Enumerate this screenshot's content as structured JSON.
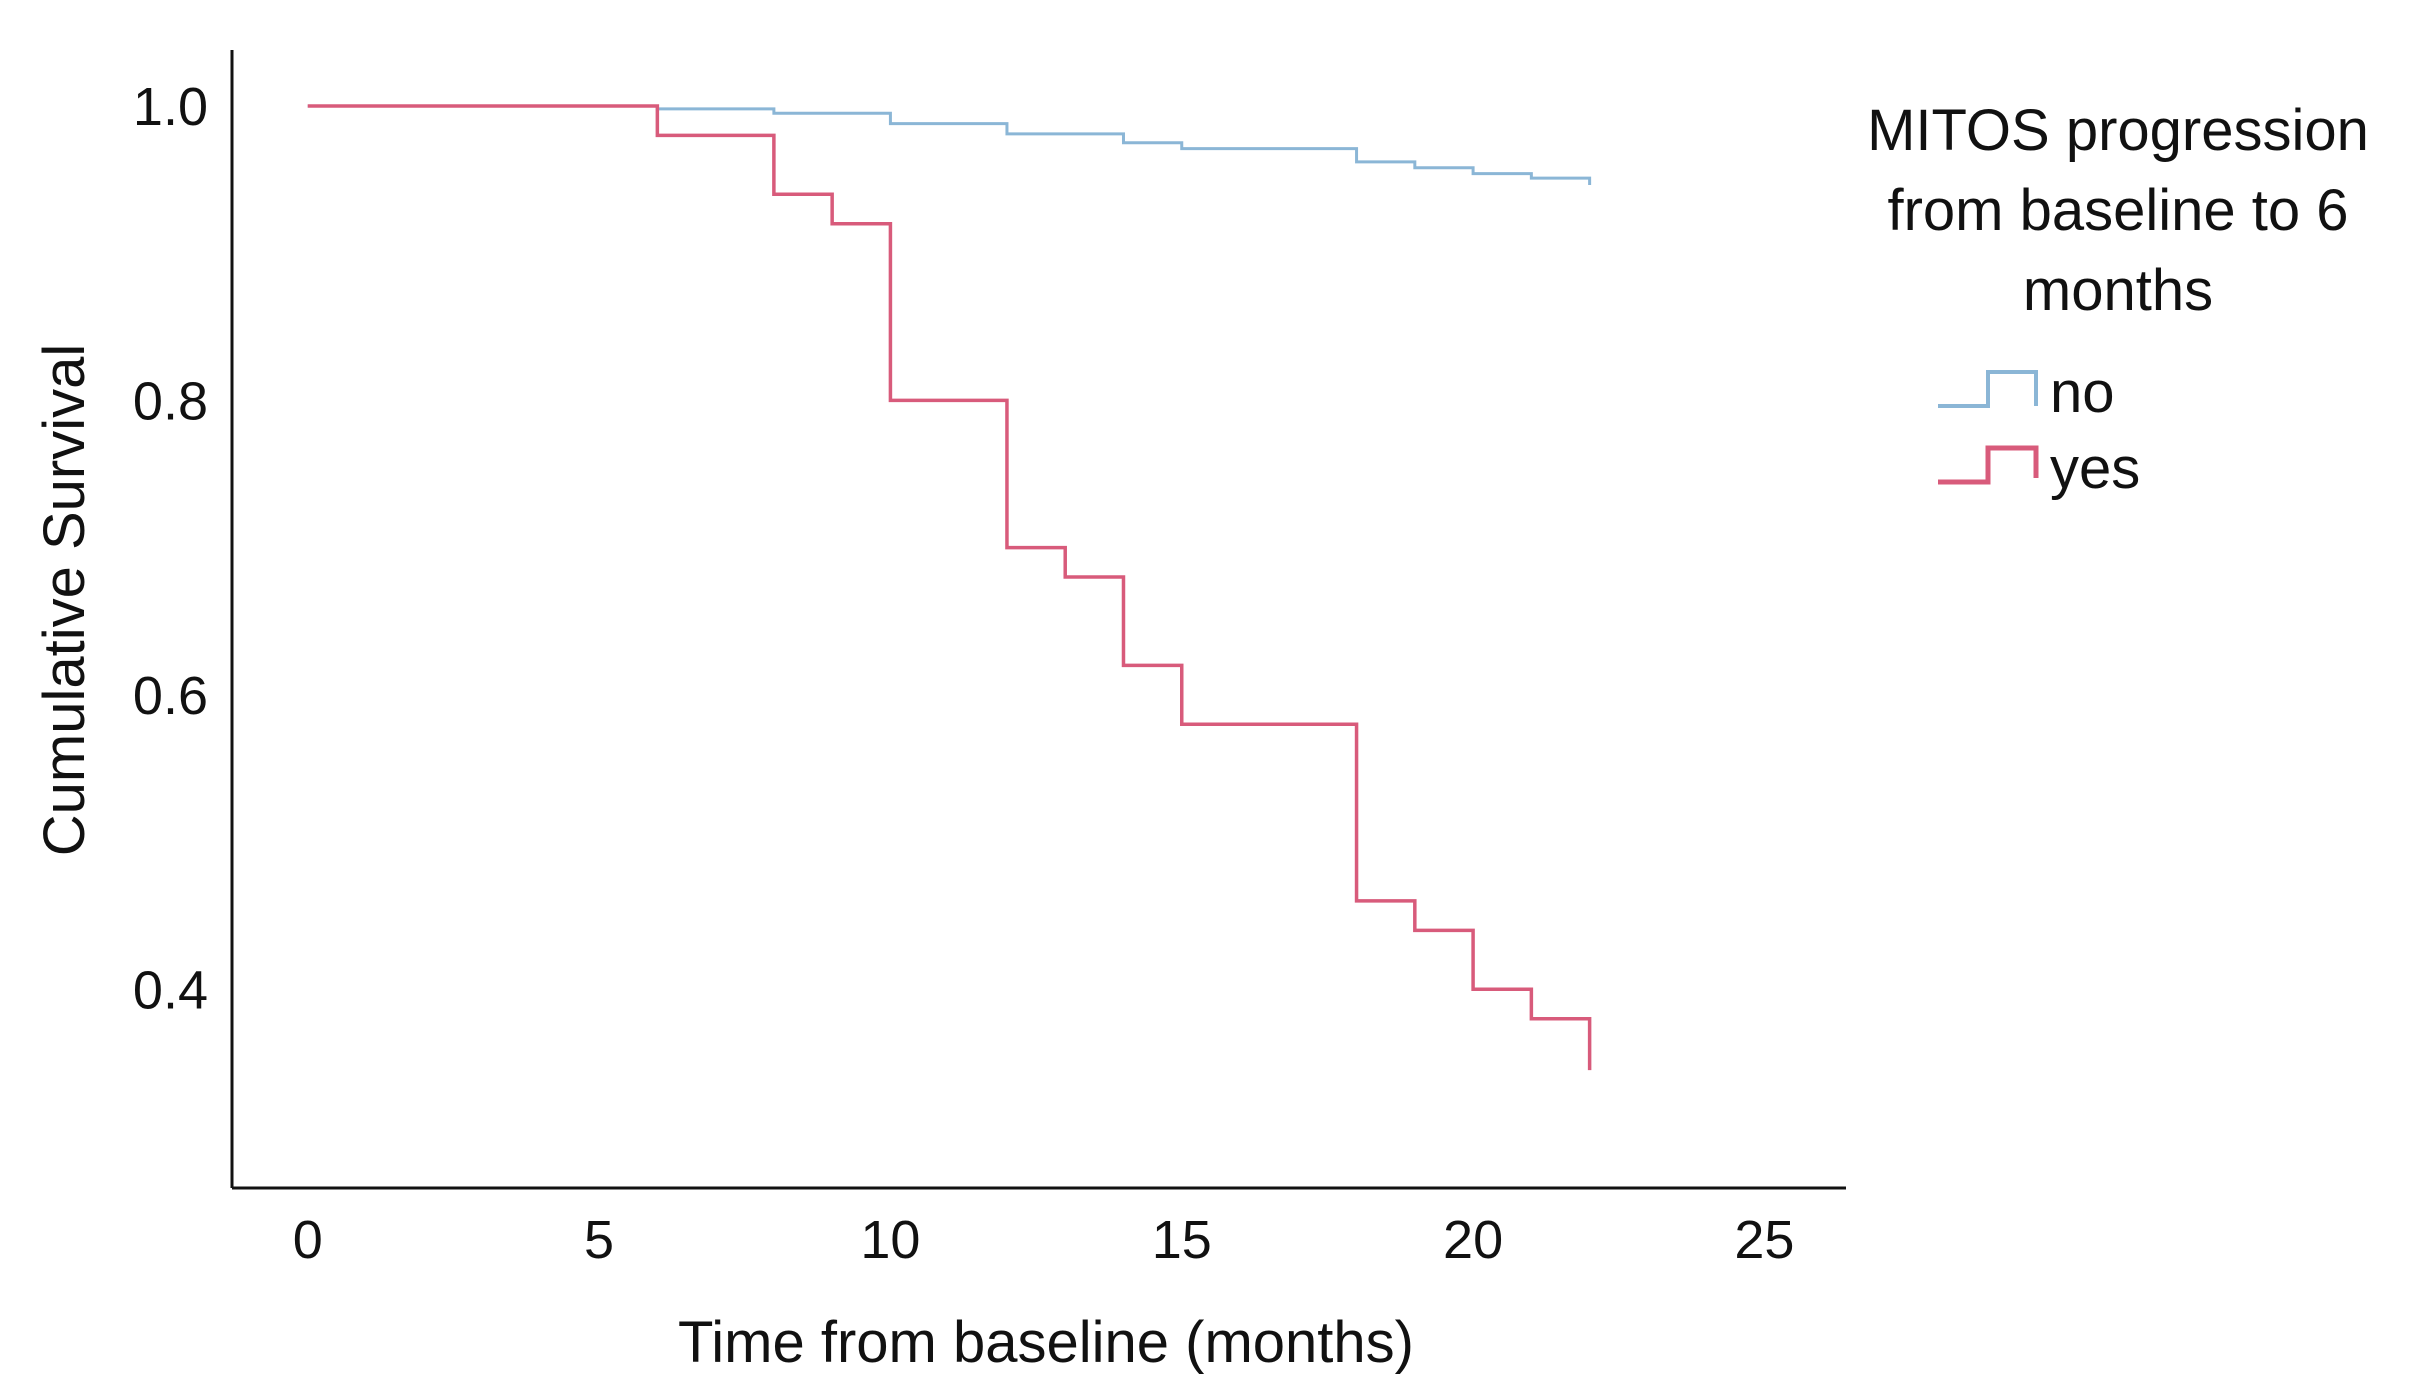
{
  "chart_data": {
    "type": "line",
    "subtype": "kaplan-meier-step",
    "title": "",
    "xlabel": "Time from baseline (months)",
    "ylabel": "Cumulative Survival",
    "xlim": [
      -1.3,
      26.4
    ],
    "ylim": [
      0.265,
      1.038
    ],
    "x_ticks": [
      0,
      5,
      10,
      15,
      20,
      25
    ],
    "x_tick_labels": [
      "0",
      "5",
      "10",
      "15",
      "20",
      "25"
    ],
    "y_ticks": [
      0.4,
      0.6,
      0.8,
      1.0
    ],
    "y_tick_labels": [
      "0.4",
      "0.6",
      "0.8",
      "1.0"
    ],
    "grid": false,
    "legend": {
      "title": [
        "MITOS progression",
        "from baseline to 6",
        "months"
      ],
      "position": "top-right"
    },
    "series": [
      {
        "name": "no",
        "color": "#8bb6d6",
        "steps": [
          [
            0,
            1.0
          ],
          [
            6,
            0.998
          ],
          [
            8,
            0.995
          ],
          [
            10,
            0.988
          ],
          [
            12,
            0.981
          ],
          [
            14,
            0.975
          ],
          [
            15,
            0.971
          ],
          [
            18,
            0.962
          ],
          [
            19,
            0.958
          ],
          [
            20,
            0.954
          ],
          [
            21,
            0.951
          ],
          [
            22,
            0.949
          ]
        ],
        "end_x": 22
      },
      {
        "name": "yes",
        "color": "#d85b7b",
        "steps": [
          [
            0,
            1.0
          ],
          [
            6,
            0.98
          ],
          [
            8,
            0.94
          ],
          [
            9,
            0.92
          ],
          [
            10,
            0.8
          ],
          [
            12,
            0.7
          ],
          [
            13,
            0.68
          ],
          [
            14,
            0.62
          ],
          [
            15,
            0.58
          ],
          [
            18,
            0.46
          ],
          [
            19,
            0.44
          ],
          [
            20,
            0.4
          ],
          [
            21,
            0.38
          ],
          [
            22,
            0.36
          ]
        ],
        "end_x": 22
      }
    ]
  }
}
